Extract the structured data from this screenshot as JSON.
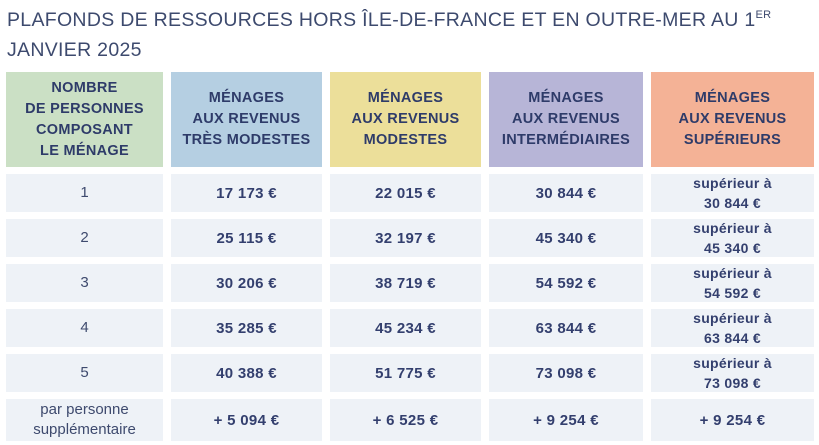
{
  "title": {
    "text_before_sup": "PLAFONDS DE RESSOURCES HORS ÎLE-DE-FRANCE ET EN OUTRE-MER AU 1",
    "superscript": "ER",
    "line2": "JANVIER 2025"
  },
  "colors": {
    "title_text": "#3d4a6e",
    "header_text": "#2e3b69",
    "value_text": "#333f6e",
    "header_household": "#cbe0c5",
    "header_tres_modestes": "#b5cfe2",
    "header_modestes": "#ecdf9a",
    "header_intermediaires": "#b7b5d7",
    "header_superieurs": "#f4b296",
    "cell_background": "#eef2f7"
  },
  "table": {
    "headers": [
      {
        "key": "household",
        "label": "NOMBRE\nDE PERSONNES\nCOMPOSANT\nLE MÉNAGE"
      },
      {
        "key": "tres_modestes",
        "label": "MÉNAGES\nAUX REVENUS\nTRÈS MODESTES"
      },
      {
        "key": "modestes",
        "label": "MÉNAGES\nAUX REVENUS\nMODESTES"
      },
      {
        "key": "intermediaires",
        "label": "MÉNAGES\nAUX REVENUS\nINTERMÉDIAIRES"
      },
      {
        "key": "superieurs",
        "label": "MÉNAGES\nAUX REVENUS\nSUPÉRIEURS"
      }
    ],
    "rows": [
      {
        "label": "1",
        "values": [
          "17 173 €",
          "22 015 €",
          "30 844 €",
          "supérieur à\n30 844 €"
        ]
      },
      {
        "label": "2",
        "values": [
          "25 115 €",
          "32 197 €",
          "45 340 €",
          "supérieur à\n45 340 €"
        ]
      },
      {
        "label": "3",
        "values": [
          "30 206 €",
          "38 719 €",
          "54 592 €",
          "supérieur à\n54 592 €"
        ]
      },
      {
        "label": "4",
        "values": [
          "35 285 €",
          "45 234 €",
          "63 844 €",
          "supérieur à\n63 844 €"
        ]
      },
      {
        "label": "5",
        "values": [
          "40 388 €",
          "51 775 €",
          "73 098 €",
          "supérieur à\n73 098 €"
        ]
      },
      {
        "label": "par personne\nsupplémentaire",
        "values": [
          "+ 5 094 €",
          "+ 6 525 €",
          "+ 9 254 €",
          "+ 9 254 €"
        ]
      }
    ]
  }
}
